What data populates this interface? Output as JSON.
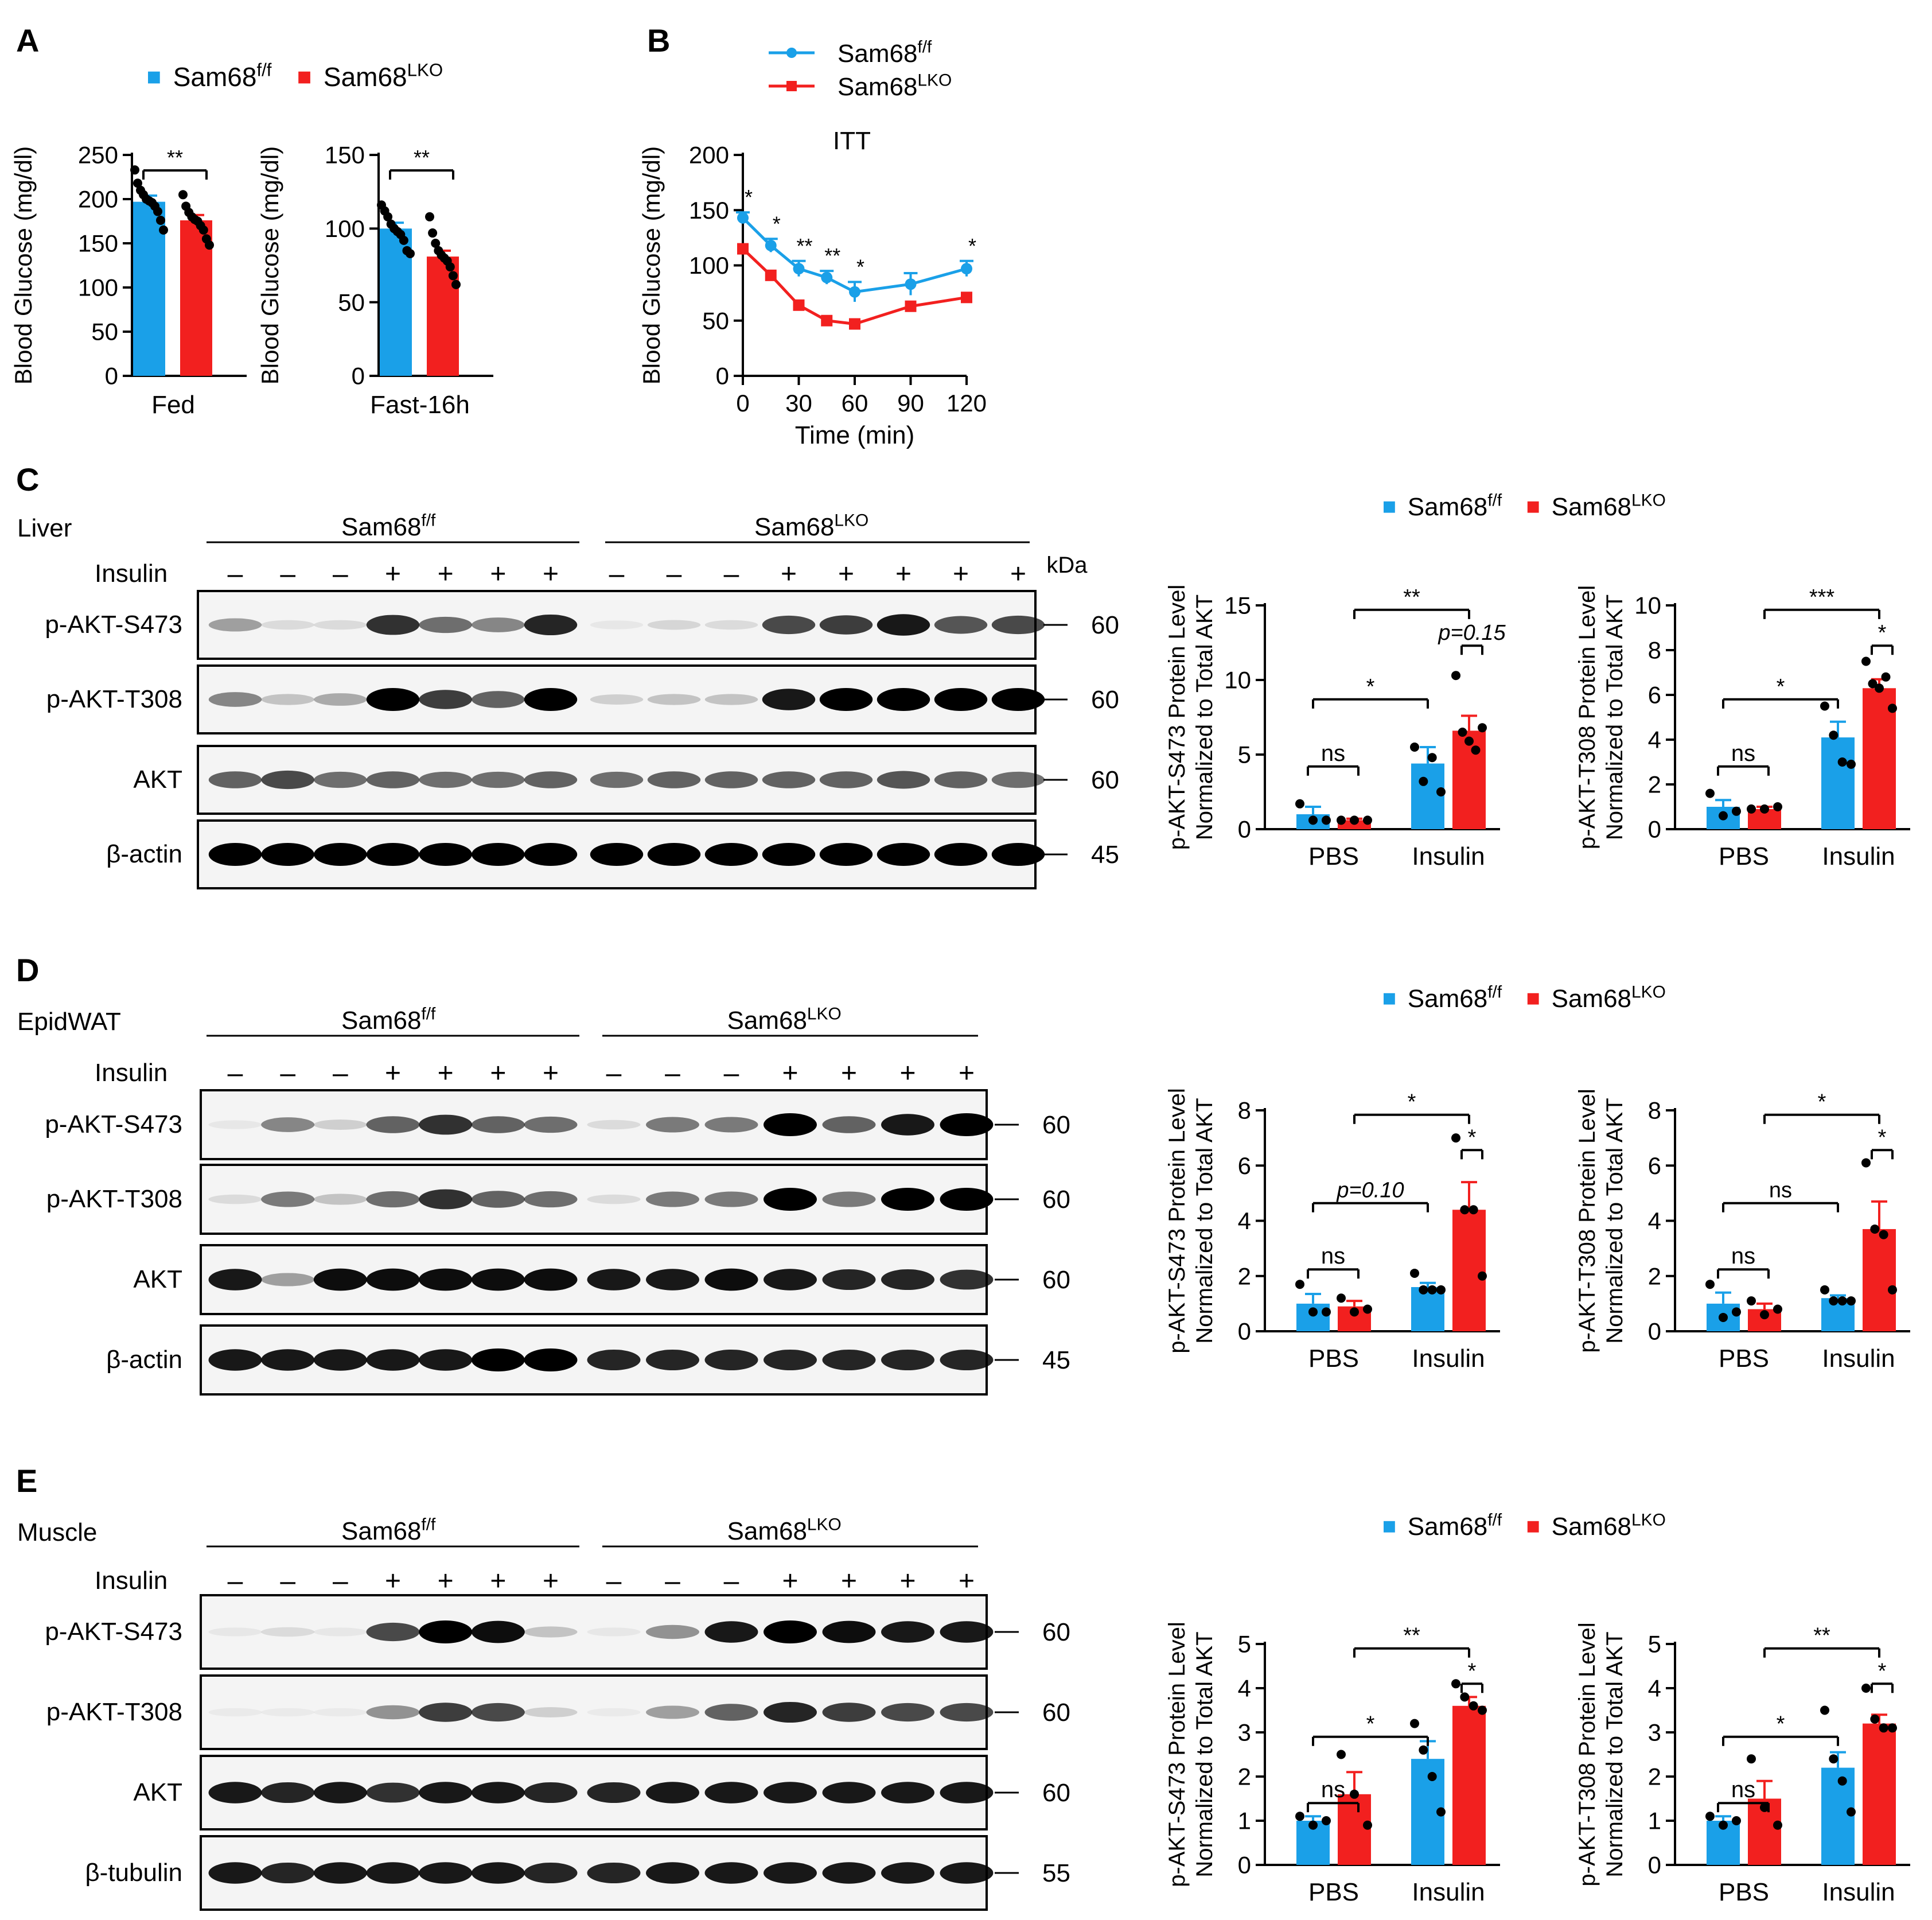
{
  "colors": {
    "ff": "#1aa0e8",
    "lko": "#f2201f",
    "dot": "#000000"
  },
  "legend": {
    "ff": "Sam68",
    "ff_sup": "f/f",
    "lko": "Sam68",
    "lko_sup": "LKO"
  },
  "panel_letters": [
    "A",
    "B",
    "C",
    "D",
    "E"
  ],
  "panel_A": {
    "ylabel": "Blood Glucose (mg/dl)",
    "charts": [
      {
        "category": "Fed",
        "sig": "**",
        "ylim": [
          0,
          250
        ],
        "yticks": [
          0,
          50,
          100,
          150,
          200,
          250
        ],
        "ff_mean": 197,
        "ff_err": 7,
        "lko_mean": 176,
        "lko_err": 6,
        "ff_points": [
          233,
          218,
          210,
          205,
          200,
          198,
          196,
          192,
          186,
          176,
          165
        ],
        "lko_points": [
          205,
          192,
          185,
          180,
          177,
          175,
          170,
          165,
          155,
          148
        ]
      },
      {
        "category": "Fast-16h",
        "sig": "**",
        "ylim": [
          0,
          150
        ],
        "yticks": [
          0,
          50,
          100,
          150
        ],
        "ff_mean": 100,
        "ff_err": 4,
        "lko_mean": 81,
        "lko_err": 4,
        "ff_points": [
          116,
          112,
          108,
          103,
          100,
          98,
          96,
          92,
          85,
          83
        ],
        "lko_points": [
          108,
          97,
          90,
          85,
          82,
          80,
          78,
          74,
          68,
          62
        ]
      }
    ]
  },
  "panel_B": {
    "title": "ITT",
    "ylabel": "Blood Glucose (mg/dl)",
    "xlabel": "Time (min)",
    "ylim": [
      0,
      200
    ],
    "yticks": [
      0,
      50,
      100,
      150,
      200
    ],
    "xticks": [
      0,
      30,
      60,
      90,
      120
    ],
    "x": [
      0,
      15,
      30,
      45,
      60,
      90,
      120
    ],
    "ff": [
      143,
      118,
      97,
      89,
      76,
      83,
      97
    ],
    "ff_err": [
      5,
      6,
      7,
      6,
      9,
      10,
      7
    ],
    "lko": [
      115,
      91,
      64,
      50,
      47,
      63,
      71
    ],
    "lko_err": [
      3,
      3,
      3,
      3,
      3,
      3,
      3
    ],
    "sig": [
      "*",
      "*",
      "**",
      "**",
      "*",
      "",
      "*"
    ]
  },
  "blots": [
    {
      "tissue": "Liver",
      "insulin_label": "Insulin",
      "ff_signs": [
        "–",
        "–",
        "–",
        "+",
        "+",
        "+",
        "+"
      ],
      "lko_signs": [
        "–",
        "–",
        "–",
        "+",
        "+",
        "+",
        "+",
        "+"
      ],
      "kda_label": "kDa",
      "rows": [
        {
          "label": "p-AKT-S473",
          "kda": "60"
        },
        {
          "label": "p-AKT-T308",
          "kda": "60"
        },
        {
          "label": "AKT",
          "kda": "60"
        },
        {
          "label": "β-actin",
          "kda": "45"
        }
      ],
      "intensity": [
        [
          0.35,
          0.1,
          0.1,
          0.8,
          0.55,
          0.45,
          0.85,
          0.05,
          0.12,
          0.1,
          0.7,
          0.75,
          0.9,
          0.65,
          0.7
        ],
        [
          0.45,
          0.2,
          0.3,
          1.0,
          0.75,
          0.6,
          1.0,
          0.15,
          0.2,
          0.2,
          0.9,
          1.0,
          1.0,
          1.0,
          1.0
        ],
        [
          0.6,
          0.7,
          0.55,
          0.6,
          0.55,
          0.55,
          0.6,
          0.55,
          0.6,
          0.6,
          0.6,
          0.6,
          0.65,
          0.6,
          0.55
        ],
        [
          1,
          1,
          1,
          1,
          1,
          1,
          1,
          1,
          1,
          1,
          1,
          1,
          1,
          1,
          1
        ]
      ]
    },
    {
      "tissue": "EpidWAT",
      "insulin_label": "Insulin",
      "ff_signs": [
        "–",
        "–",
        "–",
        "+",
        "+",
        "+",
        "+"
      ],
      "lko_signs": [
        "–",
        "–",
        "–",
        "+",
        "+",
        "+",
        "+"
      ],
      "kda_label": "",
      "rows": [
        {
          "label": "p-AKT-S473",
          "kda": "60"
        },
        {
          "label": "p-AKT-T308",
          "kda": "60"
        },
        {
          "label": "AKT",
          "kda": "60"
        },
        {
          "label": "β-actin",
          "kda": "45"
        }
      ],
      "intensity": [
        [
          0.05,
          0.45,
          0.15,
          0.6,
          0.8,
          0.6,
          0.55,
          0.1,
          0.5,
          0.5,
          1.0,
          0.6,
          0.9,
          1.0
        ],
        [
          0.1,
          0.5,
          0.2,
          0.55,
          0.8,
          0.6,
          0.55,
          0.1,
          0.5,
          0.5,
          1.0,
          0.5,
          1.0,
          1.0
        ],
        [
          0.9,
          0.35,
          0.95,
          0.95,
          0.95,
          0.95,
          0.95,
          0.9,
          0.9,
          0.95,
          0.9,
          0.85,
          0.85,
          0.8
        ],
        [
          0.9,
          0.9,
          0.9,
          0.9,
          0.9,
          1.0,
          1.0,
          0.85,
          0.85,
          0.85,
          0.85,
          0.85,
          0.85,
          0.85
        ]
      ]
    },
    {
      "tissue": "Muscle",
      "insulin_label": "Insulin",
      "ff_signs": [
        "–",
        "–",
        "–",
        "+",
        "+",
        "+",
        "+"
      ],
      "lko_signs": [
        "–",
        "–",
        "–",
        "+",
        "+",
        "+",
        "+"
      ],
      "kda_label": "",
      "rows": [
        {
          "label": "p-AKT-S473",
          "kda": "60"
        },
        {
          "label": "p-AKT-T308",
          "kda": "60"
        },
        {
          "label": "AKT",
          "kda": "60"
        },
        {
          "label": "β-tubulin",
          "kda": "55"
        }
      ],
      "intensity": [
        [
          0.05,
          0.1,
          0.05,
          0.7,
          1.0,
          0.95,
          0.2,
          0.05,
          0.4,
          0.9,
          1.0,
          0.95,
          0.9,
          0.9
        ],
        [
          0.02,
          0.02,
          0.02,
          0.4,
          0.75,
          0.7,
          0.15,
          0.02,
          0.35,
          0.6,
          0.85,
          0.75,
          0.7,
          0.7
        ],
        [
          0.9,
          0.85,
          0.9,
          0.8,
          0.9,
          0.9,
          0.85,
          0.85,
          0.9,
          0.9,
          0.9,
          0.9,
          0.9,
          0.9
        ],
        [
          0.9,
          0.85,
          0.9,
          0.9,
          0.9,
          0.9,
          0.85,
          0.85,
          0.9,
          0.9,
          0.9,
          0.9,
          0.9,
          0.9
        ]
      ]
    }
  ],
  "quant": {
    "ylabel1_s473": "p-AKT-S473 Protein Level",
    "ylabel1_t308": "p-AKT-T308 Protein Level",
    "ylabel2": "Normalized to Total AKT",
    "categories": [
      "PBS",
      "Insulin"
    ],
    "charts": [
      {
        "id": "C1",
        "ylim": [
          0,
          15
        ],
        "yticks": [
          0,
          5,
          10,
          15
        ],
        "ff": [
          1.0,
          4.4
        ],
        "ff_err": [
          0.5,
          1.1
        ],
        "lko": [
          0.6,
          6.6
        ],
        "lko_err": [
          0.1,
          1.0
        ],
        "ff_pts": [
          [
            1.7,
            0.6,
            0.6
          ],
          [
            5.5,
            3.2,
            4.8,
            2.5
          ]
        ],
        "lko_pts": [
          [
            0.6,
            0.6,
            0.6
          ],
          [
            10.3,
            6.5,
            5.9,
            5.3,
            6.8
          ]
        ],
        "sig_pbs": "ns",
        "sig_ins": "p=0.15",
        "sig_ff": "*",
        "sig_lko": "**"
      },
      {
        "id": "C2",
        "ylim": [
          0,
          10
        ],
        "yticks": [
          0,
          2,
          4,
          6,
          8,
          10
        ],
        "ff": [
          1.0,
          4.1
        ],
        "ff_err": [
          0.3,
          0.7
        ],
        "lko": [
          0.9,
          6.3
        ],
        "lko_err": [
          0.1,
          0.4
        ],
        "ff_pts": [
          [
            1.6,
            0.6,
            0.8
          ],
          [
            5.5,
            4.2,
            3.0,
            2.9
          ]
        ],
        "lko_pts": [
          [
            0.9,
            0.9,
            1.0
          ],
          [
            7.5,
            6.5,
            6.3,
            6.8,
            5.4
          ]
        ],
        "sig_pbs": "ns",
        "sig_ins": "*",
        "sig_ff": "*",
        "sig_lko": "***"
      },
      {
        "id": "D1",
        "ylim": [
          0,
          8
        ],
        "yticks": [
          0,
          2,
          4,
          6,
          8
        ],
        "ff": [
          1.0,
          1.6
        ],
        "ff_err": [
          0.35,
          0.15
        ],
        "lko": [
          0.9,
          4.4
        ],
        "lko_err": [
          0.2,
          1.0
        ],
        "ff_pts": [
          [
            1.7,
            0.7,
            0.7
          ],
          [
            2.1,
            1.5,
            1.5,
            1.5
          ]
        ],
        "lko_pts": [
          [
            1.2,
            0.7,
            0.8
          ],
          [
            7.0,
            4.4,
            4.4,
            2.0
          ]
        ],
        "sig_pbs": "ns",
        "sig_ins": "*",
        "sig_ff": "p=0.10",
        "sig_lko": "*"
      },
      {
        "id": "D2",
        "ylim": [
          0,
          8
        ],
        "yticks": [
          0,
          2,
          4,
          6,
          8
        ],
        "ff": [
          1.0,
          1.2
        ],
        "ff_err": [
          0.4,
          0.1
        ],
        "lko": [
          0.8,
          3.7
        ],
        "lko_err": [
          0.2,
          1.0
        ],
        "ff_pts": [
          [
            1.7,
            0.5,
            0.7
          ],
          [
            1.5,
            1.1,
            1.1,
            1.1
          ]
        ],
        "lko_pts": [
          [
            1.1,
            0.6,
            0.8
          ],
          [
            6.1,
            3.7,
            3.5,
            1.5
          ]
        ],
        "sig_pbs": "ns",
        "sig_ins": "*",
        "sig_ff": "ns",
        "sig_lko": "*"
      },
      {
        "id": "E1",
        "ylim": [
          0,
          5
        ],
        "yticks": [
          0,
          1,
          2,
          3,
          4,
          5
        ],
        "ff": [
          1.0,
          2.4
        ],
        "ff_err": [
          0.1,
          0.4
        ],
        "lko": [
          1.6,
          3.6
        ],
        "lko_err": [
          0.5,
          0.2
        ],
        "ff_pts": [
          [
            1.1,
            0.9,
            1.0
          ],
          [
            3.2,
            2.6,
            2.0,
            1.2
          ]
        ],
        "lko_pts": [
          [
            2.5,
            1.6,
            0.9
          ],
          [
            4.1,
            3.8,
            3.6,
            3.5
          ]
        ],
        "sig_pbs": "ns",
        "sig_ins": "*",
        "sig_ff": "*",
        "sig_lko": "**"
      },
      {
        "id": "E2",
        "ylim": [
          0,
          5
        ],
        "yticks": [
          0,
          1,
          2,
          3,
          4,
          5
        ],
        "ff": [
          1.0,
          2.2
        ],
        "ff_err": [
          0.1,
          0.35
        ],
        "lko": [
          1.5,
          3.2
        ],
        "lko_err": [
          0.4,
          0.2
        ],
        "ff_pts": [
          [
            1.1,
            0.9,
            1.0
          ],
          [
            3.5,
            2.4,
            1.9,
            1.2
          ]
        ],
        "lko_pts": [
          [
            2.4,
            1.3,
            0.9
          ],
          [
            4.0,
            3.3,
            3.1,
            3.1
          ]
        ],
        "sig_pbs": "ns",
        "sig_ins": "*",
        "sig_ff": "*",
        "sig_lko": "**"
      }
    ]
  }
}
